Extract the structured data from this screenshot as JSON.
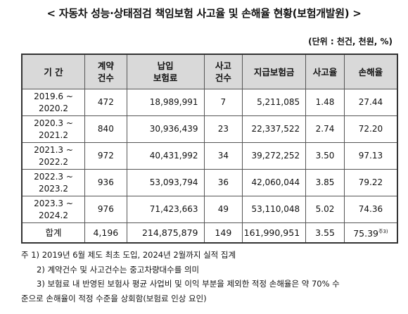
{
  "header": {
    "title": "< 자동차 성능·상태점검 책임보험 사고율 및 손해율 현황(보험개발원) >",
    "unit": "(단위 : 천건, 천원, %)"
  },
  "table": {
    "columns": [
      [
        "기 간"
      ],
      [
        "계약",
        "건수"
      ],
      [
        "납입",
        "보험료"
      ],
      [
        "사고",
        "건수"
      ],
      [
        "지급보험금"
      ],
      [
        "사고율"
      ],
      [
        "손해율"
      ]
    ],
    "rows": [
      [
        [
          "2019.6 ~",
          "2020.2"
        ],
        "472",
        "18,989,991",
        "7",
        "5,211,085",
        "1.48",
        "27.44"
      ],
      [
        [
          "2020.3 ~",
          "2021.2"
        ],
        "840",
        "30,936,439",
        "23",
        "22,337,522",
        "2.74",
        "72.20"
      ],
      [
        [
          "2021.3 ~",
          "2022.2"
        ],
        "972",
        "40,431,992",
        "34",
        "39,272,252",
        "3.50",
        "97.13"
      ],
      [
        [
          "2022.3 ~",
          "2023.2"
        ],
        "936",
        "53,093,794",
        "36",
        "42,060,044",
        "3.85",
        "79.22"
      ],
      [
        [
          "2023.3 ~",
          "2024.2"
        ],
        "976",
        "71,423,663",
        "49",
        "53,110,048",
        "5.02",
        "74.36"
      ]
    ],
    "total": {
      "label": "합계",
      "cells": [
        "4,196",
        "214,875,879",
        "149",
        "161,990,951",
        "3.55",
        "75.39"
      ],
      "note_ref": "주3)"
    }
  },
  "notes": [
    [
      "주 1) 2019년 6월 제도 최초 도입, 2024년 2월까지 실적 집계"
    ],
    [
      "2) 계약건수 및 사고건수는 중고차량대수를 의미"
    ],
    [
      "3) 보험료 내 반영된 보험사 평균 사업비 및 이익 부분을 제외한 적정 손해율은 약 70% 수",
      "준으로 손해율이 적정 수준을 상회함(보험료 인상 요인)"
    ]
  ]
}
